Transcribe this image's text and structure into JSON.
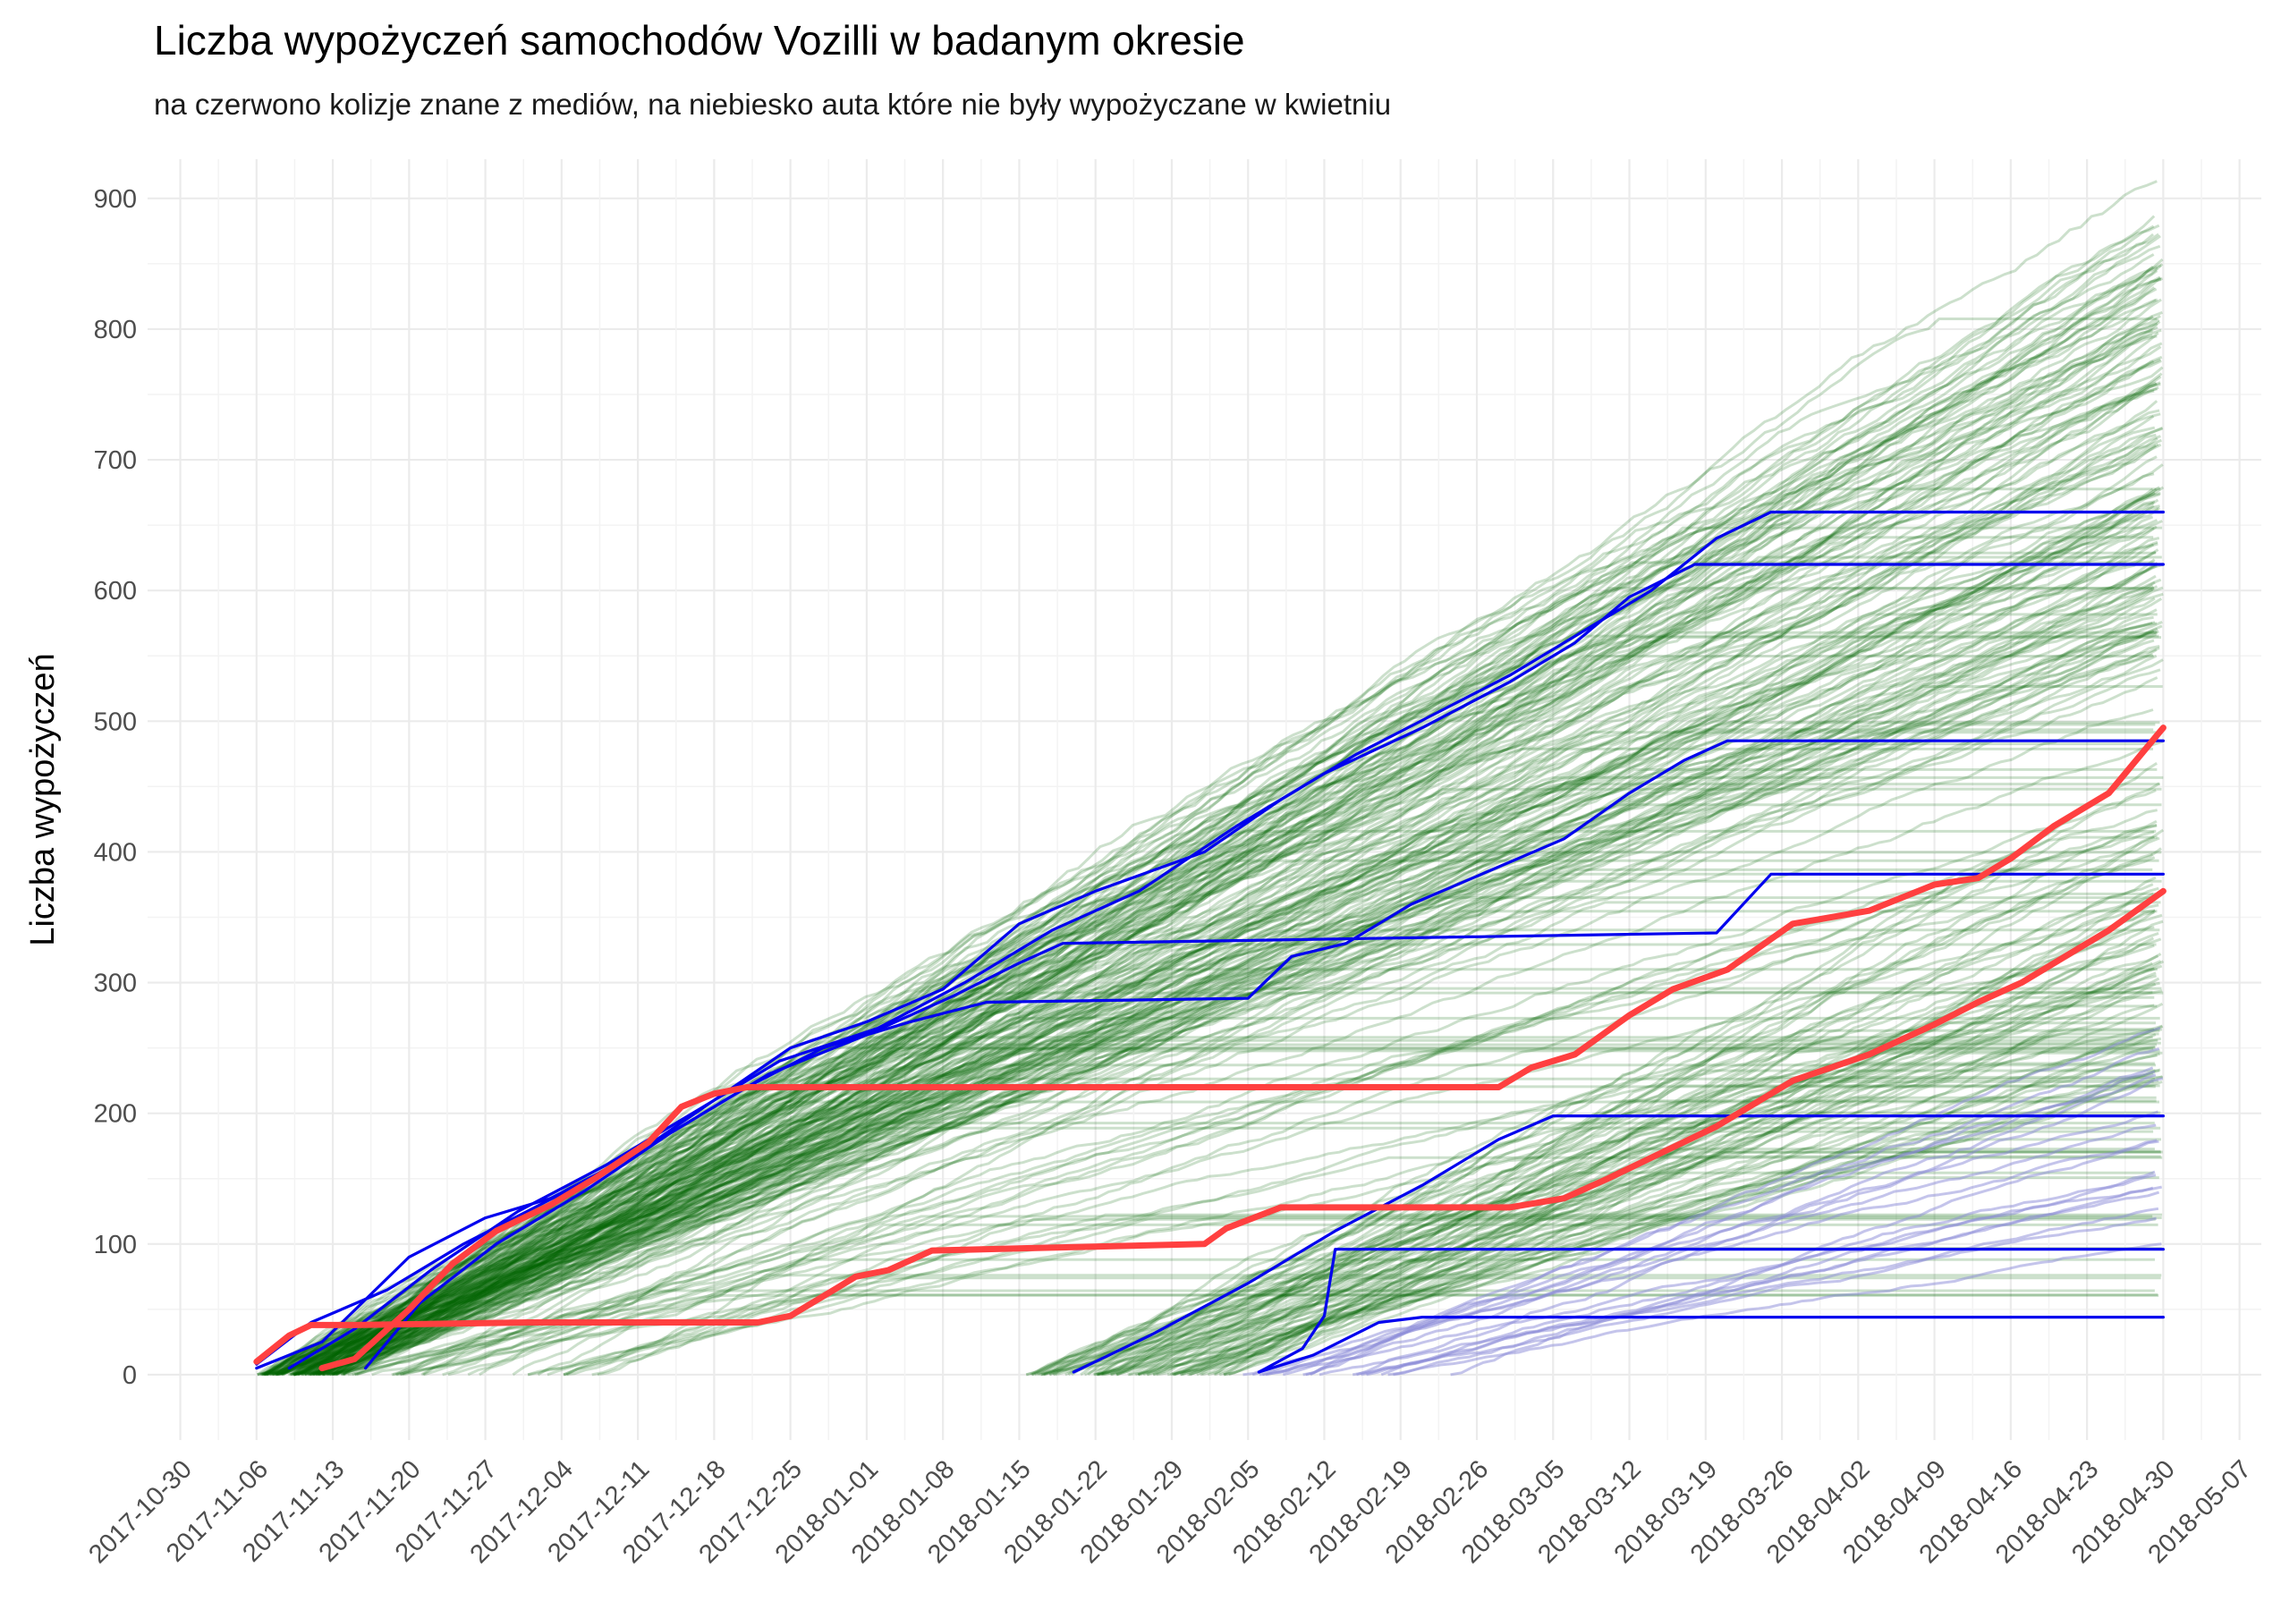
{
  "chart_data": {
    "type": "line",
    "title": "Liczba wypożyczeń samochodów Vozilli w badanym okresie",
    "subtitle": "na czerwono kolizje znane z mediów, na niebiesko auta które nie były wypożyczane w kwietniu",
    "xlabel": "",
    "ylabel": "Liczba wypożyczeń",
    "x_type": "date",
    "xlim": [
      "2017-10-27",
      "2018-05-09"
    ],
    "ylim": [
      -50,
      930
    ],
    "x_ticks": [
      "2017-10-30",
      "2017-11-06",
      "2017-11-13",
      "2017-11-20",
      "2017-11-27",
      "2017-12-04",
      "2017-12-11",
      "2017-12-18",
      "2017-12-25",
      "2018-01-01",
      "2018-01-08",
      "2018-01-15",
      "2018-01-22",
      "2018-01-29",
      "2018-02-05",
      "2018-02-12",
      "2018-02-19",
      "2018-02-26",
      "2018-03-05",
      "2018-03-12",
      "2018-03-19",
      "2018-03-26",
      "2018-04-02",
      "2018-04-09",
      "2018-04-16",
      "2018-04-23",
      "2018-04-30",
      "2018-05-07"
    ],
    "y_ticks": [
      0,
      100,
      200,
      300,
      400,
      500,
      600,
      700,
      800,
      900
    ],
    "grid": true,
    "legend": "none",
    "colors": {
      "normal": "#006400",
      "collision": "#ff4040",
      "inactive_april": "#0000ee",
      "inactive_april_faint": "#8a8ad8",
      "grid": "#ebebeb"
    },
    "highlight_series": [
      {
        "group": "collision",
        "points": [
          [
            "2017-11-06",
            10
          ],
          [
            "2017-11-09",
            30
          ],
          [
            "2017-11-11",
            38
          ],
          [
            "2017-11-15",
            38
          ],
          [
            "2017-12-01",
            40
          ],
          [
            "2017-12-22",
            40
          ],
          [
            "2017-12-25",
            45
          ],
          [
            "2017-12-29",
            65
          ],
          [
            "2017-12-31",
            75
          ],
          [
            "2018-01-03",
            80
          ],
          [
            "2018-01-07",
            95
          ],
          [
            "2018-02-01",
            100
          ],
          [
            "2018-02-03",
            112
          ],
          [
            "2018-02-08",
            128
          ],
          [
            "2018-03-01",
            128
          ],
          [
            "2018-03-06",
            135
          ],
          [
            "2018-03-10",
            150
          ],
          [
            "2018-03-15",
            170
          ],
          [
            "2018-03-20",
            190
          ],
          [
            "2018-03-27",
            225
          ],
          [
            "2018-04-03",
            245
          ],
          [
            "2018-04-09",
            268
          ],
          [
            "2018-04-13",
            285
          ],
          [
            "2018-04-17",
            300
          ],
          [
            "2018-04-21",
            320
          ],
          [
            "2018-04-25",
            340
          ],
          [
            "2018-04-30",
            370
          ]
        ]
      },
      {
        "group": "collision",
        "points": [
          [
            "2017-11-12",
            5
          ],
          [
            "2017-11-15",
            12
          ],
          [
            "2017-11-20",
            50
          ],
          [
            "2017-11-24",
            85
          ],
          [
            "2017-11-28",
            110
          ],
          [
            "2017-12-03",
            130
          ],
          [
            "2017-12-07",
            150
          ],
          [
            "2017-12-12",
            178
          ],
          [
            "2017-12-15",
            205
          ],
          [
            "2017-12-18",
            215
          ],
          [
            "2017-12-21",
            220
          ],
          [
            "2018-02-28",
            220
          ],
          [
            "2018-03-03",
            235
          ],
          [
            "2018-03-07",
            245
          ],
          [
            "2018-03-12",
            275
          ],
          [
            "2018-03-16",
            295
          ],
          [
            "2018-03-21",
            310
          ],
          [
            "2018-03-27",
            345
          ],
          [
            "2018-04-03",
            355
          ],
          [
            "2018-04-09",
            375
          ],
          [
            "2018-04-13",
            380
          ],
          [
            "2018-04-16",
            395
          ],
          [
            "2018-04-20",
            420
          ],
          [
            "2018-04-25",
            445
          ],
          [
            "2018-04-30",
            495
          ]
        ]
      },
      {
        "group": "inactive_april",
        "points": [
          [
            "2017-11-06",
            5
          ],
          [
            "2017-11-12",
            25
          ],
          [
            "2017-11-20",
            90
          ],
          [
            "2017-11-27",
            120
          ],
          [
            "2017-12-03",
            135
          ],
          [
            "2017-12-11",
            170
          ],
          [
            "2017-12-18",
            210
          ],
          [
            "2017-12-25",
            250
          ],
          [
            "2018-01-01",
            270
          ],
          [
            "2018-01-08",
            295
          ],
          [
            "2018-01-15",
            345
          ],
          [
            "2018-01-22",
            370
          ],
          [
            "2018-02-01",
            400
          ],
          [
            "2018-02-08",
            440
          ],
          [
            "2018-02-15",
            475
          ],
          [
            "2018-02-22",
            505
          ],
          [
            "2018-03-01",
            535
          ],
          [
            "2018-03-08",
            570
          ],
          [
            "2018-03-14",
            600
          ],
          [
            "2018-03-20",
            640
          ],
          [
            "2018-03-25",
            660
          ],
          [
            "2018-04-30",
            660
          ]
        ]
      },
      {
        "group": "inactive_april",
        "points": [
          [
            "2017-11-09",
            5
          ],
          [
            "2017-11-15",
            35
          ],
          [
            "2017-11-22",
            80
          ],
          [
            "2017-11-30",
            125
          ],
          [
            "2017-12-08",
            160
          ],
          [
            "2017-12-16",
            200
          ],
          [
            "2017-12-24",
            240
          ],
          [
            "2018-01-02",
            265
          ],
          [
            "2018-01-10",
            300
          ],
          [
            "2018-01-18",
            340
          ],
          [
            "2018-01-26",
            370
          ],
          [
            "2018-02-04",
            420
          ],
          [
            "2018-02-12",
            460
          ],
          [
            "2018-02-21",
            495
          ],
          [
            "2018-03-01",
            530
          ],
          [
            "2018-03-07",
            560
          ],
          [
            "2018-03-12",
            595
          ],
          [
            "2018-03-18",
            620
          ],
          [
            "2018-04-30",
            620
          ]
        ]
      },
      {
        "group": "inactive_april",
        "points": [
          [
            "2017-11-16",
            5
          ],
          [
            "2017-11-21",
            55
          ],
          [
            "2017-11-28",
            100
          ],
          [
            "2017-12-06",
            140
          ],
          [
            "2017-12-14",
            185
          ],
          [
            "2017-12-21",
            220
          ],
          [
            "2017-12-28",
            250
          ],
          [
            "2018-01-05",
            270
          ],
          [
            "2018-01-12",
            285
          ],
          [
            "2018-02-05",
            288
          ],
          [
            "2018-02-09",
            320
          ],
          [
            "2018-02-14",
            330
          ],
          [
            "2018-02-20",
            360
          ],
          [
            "2018-02-27",
            385
          ],
          [
            "2018-03-06",
            410
          ],
          [
            "2018-03-12",
            445
          ],
          [
            "2018-03-17",
            470
          ],
          [
            "2018-03-21",
            485
          ],
          [
            "2018-04-30",
            485
          ]
        ]
      },
      {
        "group": "inactive_april",
        "points": [
          [
            "2017-11-06",
            8
          ],
          [
            "2017-11-11",
            40
          ],
          [
            "2017-11-18",
            65
          ],
          [
            "2017-11-25",
            100
          ],
          [
            "2017-12-02",
            130
          ],
          [
            "2017-12-09",
            160
          ],
          [
            "2017-12-16",
            195
          ],
          [
            "2017-12-23",
            230
          ],
          [
            "2018-01-01",
            260
          ],
          [
            "2018-01-09",
            290
          ],
          [
            "2018-01-15",
            315
          ],
          [
            "2018-01-19",
            330
          ],
          [
            "2018-03-20",
            338
          ],
          [
            "2018-03-25",
            383
          ],
          [
            "2018-04-30",
            383
          ]
        ]
      },
      {
        "group": "inactive_april",
        "points": [
          [
            "2018-01-20",
            2
          ],
          [
            "2018-01-27",
            30
          ],
          [
            "2018-02-05",
            70
          ],
          [
            "2018-02-13",
            110
          ],
          [
            "2018-02-21",
            145
          ],
          [
            "2018-02-28",
            180
          ],
          [
            "2018-03-05",
            198
          ],
          [
            "2018-04-30",
            198
          ]
        ]
      },
      {
        "group": "inactive_april",
        "points": [
          [
            "2018-02-06",
            2
          ],
          [
            "2018-02-10",
            20
          ],
          [
            "2018-02-12",
            45
          ],
          [
            "2018-02-13",
            96
          ],
          [
            "2018-04-30",
            96
          ]
        ]
      },
      {
        "group": "inactive_april",
        "points": [
          [
            "2018-02-06",
            2
          ],
          [
            "2018-02-11",
            15
          ],
          [
            "2018-02-17",
            40
          ],
          [
            "2018-02-21",
            44
          ],
          [
            "2018-04-30",
            44
          ]
        ]
      }
    ]
  }
}
